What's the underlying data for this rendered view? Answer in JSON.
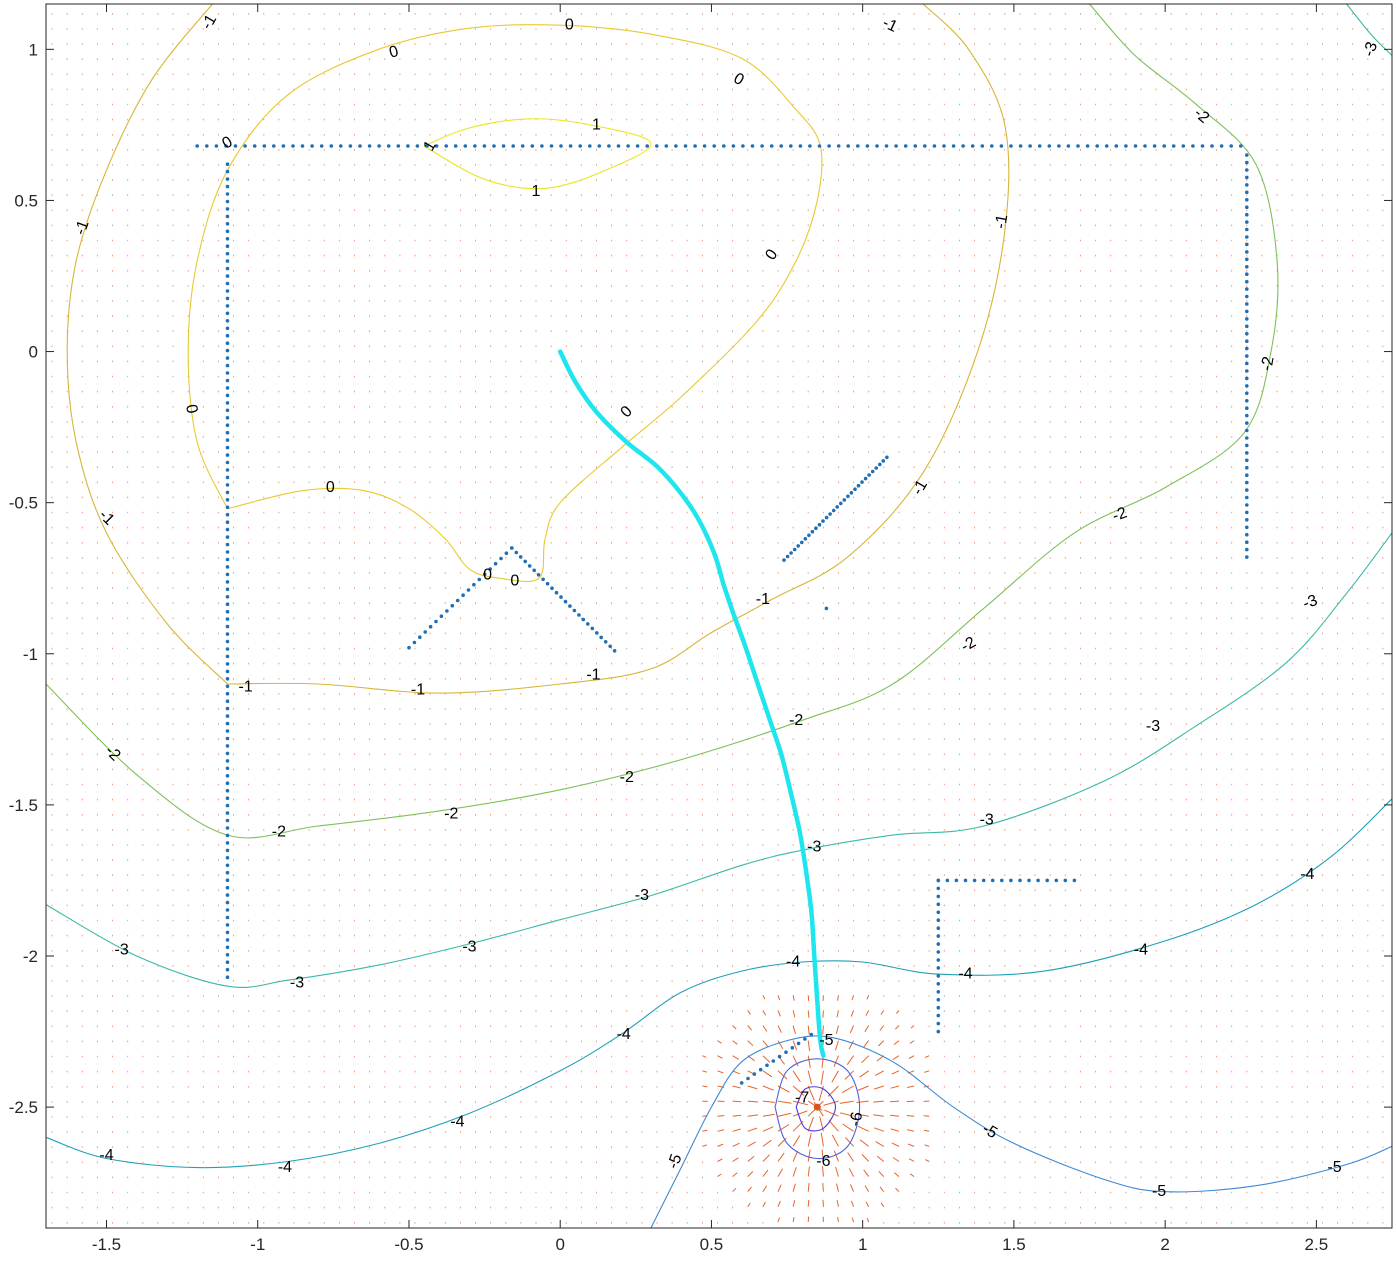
{
  "chart_data": {
    "type": "contour",
    "title": "",
    "xlabel": "",
    "ylabel": "",
    "xlim": [
      -1.7,
      2.75
    ],
    "ylim": [
      -2.9,
      1.15
    ],
    "grid": false,
    "legend": "none",
    "x_ticks": [
      "-1.5",
      "-1",
      "-0.5",
      "0",
      "0.5",
      "1",
      "1.5",
      "2",
      "2.5"
    ],
    "x_tick_values": [
      -1.5,
      -1,
      -0.5,
      0,
      0.5,
      1,
      1.5,
      2,
      2.5
    ],
    "y_ticks": [
      "1",
      "0.5",
      "0",
      "-0.5",
      "-1",
      "-1.5",
      "-2",
      "-2.5"
    ],
    "y_tick_values": [
      1,
      0.5,
      0,
      -0.5,
      -1,
      -1.5,
      -2,
      -2.5
    ],
    "goal": [
      0.85,
      -2.5
    ],
    "contours": [
      {
        "level": 1,
        "color": "#e8e625",
        "points": [
          [
            -0.45,
            0.68
          ],
          [
            -0.3,
            0.74
          ],
          [
            -0.1,
            0.77
          ],
          [
            0.1,
            0.75
          ],
          [
            0.3,
            0.69
          ],
          [
            0.15,
            0.6
          ],
          [
            -0.05,
            0.54
          ],
          [
            -0.25,
            0.57
          ],
          [
            -0.45,
            0.68
          ]
        ]
      },
      {
        "level": 0,
        "color": "#e7c931",
        "points": [
          [
            -1.1,
            -0.52
          ],
          [
            -1.2,
            -0.3
          ],
          [
            -1.23,
            0
          ],
          [
            -1.2,
            0.3
          ],
          [
            -1.1,
            0.6
          ],
          [
            -0.9,
            0.85
          ],
          [
            -0.6,
            1
          ],
          [
            -0.3,
            1.07
          ],
          [
            0,
            1.08
          ],
          [
            0.3,
            1.05
          ],
          [
            0.6,
            0.97
          ],
          [
            0.78,
            0.8
          ],
          [
            0.86,
            0.68
          ],
          [
            0.85,
            0.5
          ],
          [
            0.78,
            0.3
          ],
          [
            0.65,
            0.1
          ],
          [
            0.4,
            -0.15
          ],
          [
            0.2,
            -0.32
          ],
          [
            0,
            -0.5
          ],
          [
            -0.05,
            -0.62
          ],
          [
            -0.07,
            -0.75
          ],
          [
            -0.2,
            -0.75
          ],
          [
            -0.3,
            -0.72
          ],
          [
            -0.38,
            -0.62
          ],
          [
            -0.5,
            -0.52
          ],
          [
            -0.65,
            -0.46
          ],
          [
            -0.85,
            -0.46
          ],
          [
            -1.1,
            -0.52
          ]
        ]
      },
      {
        "level": -1,
        "color": "#d6b538",
        "points": [
          [
            -1.1,
            -1.1
          ],
          [
            -1.3,
            -0.9
          ],
          [
            -1.5,
            -0.6
          ],
          [
            -1.6,
            -0.3
          ],
          [
            -1.63,
            0
          ],
          [
            -1.6,
            0.3
          ],
          [
            -1.5,
            0.6
          ],
          [
            -1.35,
            0.9
          ],
          [
            -1.15,
            1.15
          ]
        ]
      },
      {
        "level": -1,
        "color": "#d6b538",
        "points": [
          [
            -1.1,
            -1.1
          ],
          [
            -0.8,
            -1.1
          ],
          [
            -0.4,
            -1.13
          ],
          [
            0,
            -1.1
          ],
          [
            0.3,
            -1.05
          ],
          [
            0.5,
            -0.93
          ],
          [
            0.7,
            -0.82
          ],
          [
            0.95,
            -0.68
          ],
          [
            1.2,
            -0.4
          ],
          [
            1.38,
            0
          ],
          [
            1.47,
            0.4
          ],
          [
            1.47,
            0.75
          ],
          [
            1.35,
            1
          ],
          [
            1.2,
            1.15
          ]
        ]
      },
      {
        "level": -2,
        "color": "#7dc05a",
        "points": [
          [
            -1.7,
            -1.1
          ],
          [
            -1.4,
            -1.4
          ],
          [
            -1.1,
            -1.6
          ],
          [
            -0.8,
            -1.57
          ],
          [
            -0.4,
            -1.52
          ],
          [
            0,
            -1.45
          ],
          [
            0.4,
            -1.35
          ],
          [
            0.8,
            -1.22
          ],
          [
            1.1,
            -1.1
          ],
          [
            1.4,
            -0.85
          ],
          [
            1.7,
            -0.6
          ],
          [
            2.0,
            -0.45
          ],
          [
            2.26,
            -0.27
          ],
          [
            2.35,
            0
          ],
          [
            2.37,
            0.3
          ],
          [
            2.3,
            0.62
          ],
          [
            2.1,
            0.82
          ],
          [
            1.9,
            0.98
          ],
          [
            1.75,
            1.15
          ]
        ]
      },
      {
        "level": -3,
        "color": "#3bb8a8",
        "points": [
          [
            -1.7,
            -1.83
          ],
          [
            -1.4,
            -2.0
          ],
          [
            -1.1,
            -2.1
          ],
          [
            -0.9,
            -2.08
          ],
          [
            -0.6,
            -2.03
          ],
          [
            -0.3,
            -1.96
          ],
          [
            0,
            -1.88
          ],
          [
            0.3,
            -1.8
          ],
          [
            0.6,
            -1.7
          ],
          [
            0.8,
            -1.65
          ],
          [
            1.1,
            -1.6
          ],
          [
            1.4,
            -1.57
          ],
          [
            1.8,
            -1.42
          ],
          [
            2.1,
            -1.24
          ],
          [
            2.4,
            -1.03
          ],
          [
            2.6,
            -0.8
          ],
          [
            2.75,
            -0.6
          ]
        ]
      },
      {
        "level": -4,
        "color": "#20a0b7",
        "points": [
          [
            -1.7,
            -2.6
          ],
          [
            -1.5,
            -2.67
          ],
          [
            -1.2,
            -2.7
          ],
          [
            -0.9,
            -2.68
          ],
          [
            -0.6,
            -2.62
          ],
          [
            -0.3,
            -2.52
          ],
          [
            0,
            -2.38
          ],
          [
            0.2,
            -2.26
          ],
          [
            0.4,
            -2.12
          ],
          [
            0.6,
            -2.05
          ],
          [
            0.8,
            -2.02
          ],
          [
            1.0,
            -2.02
          ],
          [
            1.25,
            -2.06
          ],
          [
            1.6,
            -2.05
          ],
          [
            2.0,
            -1.95
          ],
          [
            2.3,
            -1.83
          ],
          [
            2.55,
            -1.67
          ],
          [
            2.75,
            -1.48
          ]
        ]
      },
      {
        "level": -5,
        "color": "#3d89d4",
        "points": [
          [
            0.3,
            -2.9
          ],
          [
            0.4,
            -2.7
          ],
          [
            0.5,
            -2.5
          ],
          [
            0.6,
            -2.35
          ],
          [
            0.75,
            -2.28
          ],
          [
            0.9,
            -2.27
          ],
          [
            1.1,
            -2.35
          ],
          [
            1.3,
            -2.5
          ],
          [
            1.5,
            -2.62
          ],
          [
            1.8,
            -2.74
          ],
          [
            2.0,
            -2.78
          ],
          [
            2.3,
            -2.76
          ],
          [
            2.6,
            -2.69
          ],
          [
            2.75,
            -2.63
          ]
        ]
      },
      {
        "level": -6,
        "color": "#4a62dc",
        "points": [
          [
            0.71,
            -2.5
          ],
          [
            0.75,
            -2.38
          ],
          [
            0.85,
            -2.34
          ],
          [
            0.95,
            -2.38
          ],
          [
            0.99,
            -2.5
          ],
          [
            0.95,
            -2.63
          ],
          [
            0.85,
            -2.67
          ],
          [
            0.75,
            -2.62
          ],
          [
            0.71,
            -2.5
          ]
        ]
      },
      {
        "level": -7,
        "color": "#4f39d6",
        "points": [
          [
            0.78,
            -2.5
          ],
          [
            0.81,
            -2.44
          ],
          [
            0.87,
            -2.44
          ],
          [
            0.91,
            -2.5
          ],
          [
            0.87,
            -2.57
          ],
          [
            0.81,
            -2.57
          ],
          [
            0.78,
            -2.5
          ]
        ]
      },
      {
        "level": -3,
        "color": "#3bb8a8",
        "points": [
          [
            2.6,
            1.15
          ],
          [
            2.68,
            1.05
          ],
          [
            2.75,
            0.98
          ]
        ]
      }
    ],
    "contour_labels": [
      {
        "text": "0",
        "x": 0.03,
        "y": 1.08,
        "angle": 0
      },
      {
        "text": "0",
        "x": -0.55,
        "y": 0.99,
        "angle": -15
      },
      {
        "text": "0",
        "x": 0.59,
        "y": 0.9,
        "angle": 30
      },
      {
        "text": "0",
        "x": -1.1,
        "y": 0.69,
        "angle": -30
      },
      {
        "text": "0",
        "x": 0.7,
        "y": 0.32,
        "angle": -55
      },
      {
        "text": "0",
        "x": 0.22,
        "y": -0.2,
        "angle": -45
      },
      {
        "text": "0",
        "x": -1.22,
        "y": -0.19,
        "angle": 80
      },
      {
        "text": "0",
        "x": -0.76,
        "y": -0.45,
        "angle": 0
      },
      {
        "text": "0",
        "x": -0.24,
        "y": -0.74,
        "angle": 0
      },
      {
        "text": "0",
        "x": -0.15,
        "y": -0.76,
        "angle": 0
      },
      {
        "text": "1",
        "x": 0.12,
        "y": 0.75,
        "angle": 0
      },
      {
        "text": "1",
        "x": -0.08,
        "y": 0.53,
        "angle": 0
      },
      {
        "text": "1",
        "x": -0.43,
        "y": 0.68,
        "angle": -60
      },
      {
        "text": "-1",
        "x": -1.16,
        "y": 1.09,
        "angle": -60
      },
      {
        "text": "-1",
        "x": 1.09,
        "y": 1.08,
        "angle": 25
      },
      {
        "text": "-1",
        "x": 1.46,
        "y": 0.43,
        "angle": -80
      },
      {
        "text": "-1",
        "x": -1.58,
        "y": 0.41,
        "angle": -70
      },
      {
        "text": "-1",
        "x": -1.5,
        "y": -0.55,
        "angle": 45
      },
      {
        "text": "-1",
        "x": 1.19,
        "y": -0.45,
        "angle": -60
      },
      {
        "text": "-1",
        "x": 0.67,
        "y": -0.82,
        "angle": 0
      },
      {
        "text": "-1",
        "x": 0.11,
        "y": -1.07,
        "angle": 0
      },
      {
        "text": "-1",
        "x": -0.47,
        "y": -1.12,
        "angle": 0
      },
      {
        "text": "-1",
        "x": -1.04,
        "y": -1.11,
        "angle": 0
      },
      {
        "text": "-2",
        "x": 2.12,
        "y": 0.78,
        "angle": 40
      },
      {
        "text": "-2",
        "x": 2.34,
        "y": -0.04,
        "angle": -80
      },
      {
        "text": "-2",
        "x": 1.85,
        "y": -0.54,
        "angle": -20
      },
      {
        "text": "-2",
        "x": 1.35,
        "y": -0.97,
        "angle": -30
      },
      {
        "text": "-2",
        "x": 0.78,
        "y": -1.22,
        "angle": 0
      },
      {
        "text": "-2",
        "x": 0.22,
        "y": -1.41,
        "angle": 0
      },
      {
        "text": "-2",
        "x": -0.36,
        "y": -1.53,
        "angle": 0
      },
      {
        "text": "-2",
        "x": -0.93,
        "y": -1.59,
        "angle": 0
      },
      {
        "text": "-2",
        "x": -1.48,
        "y": -1.33,
        "angle": 45
      },
      {
        "text": "-3",
        "x": 2.68,
        "y": 1.0,
        "angle": -70
      },
      {
        "text": "-3",
        "x": 2.48,
        "y": -0.83,
        "angle": -20
      },
      {
        "text": "-3",
        "x": 1.96,
        "y": -1.24,
        "angle": 0
      },
      {
        "text": "-3",
        "x": 1.41,
        "y": -1.55,
        "angle": 0
      },
      {
        "text": "-3",
        "x": 0.84,
        "y": -1.64,
        "angle": 0
      },
      {
        "text": "-3",
        "x": 0.27,
        "y": -1.8,
        "angle": 0
      },
      {
        "text": "-3",
        "x": -0.3,
        "y": -1.97,
        "angle": 0
      },
      {
        "text": "-3",
        "x": -0.87,
        "y": -2.09,
        "angle": 0
      },
      {
        "text": "-3",
        "x": -1.45,
        "y": -1.98,
        "angle": 0
      },
      {
        "text": "-4",
        "x": 2.47,
        "y": -1.73,
        "angle": 0
      },
      {
        "text": "-4",
        "x": 1.92,
        "y": -1.98,
        "angle": 0
      },
      {
        "text": "-4",
        "x": 1.34,
        "y": -2.06,
        "angle": 0
      },
      {
        "text": "-4",
        "x": 0.77,
        "y": -2.02,
        "angle": 0
      },
      {
        "text": "-4",
        "x": 0.21,
        "y": -2.26,
        "angle": 0
      },
      {
        "text": "-4",
        "x": -0.34,
        "y": -2.55,
        "angle": 0
      },
      {
        "text": "-4",
        "x": -0.91,
        "y": -2.7,
        "angle": 0
      },
      {
        "text": "-4",
        "x": -1.5,
        "y": -2.66,
        "angle": 0
      },
      {
        "text": "-5",
        "x": 0.88,
        "y": -2.28,
        "angle": 0
      },
      {
        "text": "-5",
        "x": 0.38,
        "y": -2.68,
        "angle": -70
      },
      {
        "text": "-5",
        "x": 1.42,
        "y": -2.58,
        "angle": 30
      },
      {
        "text": "-5",
        "x": 1.98,
        "y": -2.78,
        "angle": 0
      },
      {
        "text": "-5",
        "x": 2.56,
        "y": -2.7,
        "angle": 0
      },
      {
        "text": "-6",
        "x": 0.98,
        "y": -2.54,
        "angle": -80
      },
      {
        "text": "-6",
        "x": 0.87,
        "y": -2.68,
        "angle": 0
      },
      {
        "text": "-7",
        "x": 0.8,
        "y": -2.47,
        "angle": 0
      }
    ],
    "obstacle_segments": [
      {
        "from": [
          -1.2,
          0.68
        ],
        "to": [
          2.25,
          0.68
        ],
        "n": 110
      },
      {
        "from": [
          -1.1,
          0.62
        ],
        "to": [
          -1.1,
          -2.07
        ],
        "n": 110
      },
      {
        "from": [
          2.27,
          0.65
        ],
        "to": [
          2.27,
          -0.68
        ],
        "n": 55
      },
      {
        "from": [
          0.74,
          -0.69
        ],
        "to": [
          1.08,
          -0.35
        ],
        "n": 30
      },
      {
        "from": [
          -0.5,
          -0.98
        ],
        "to": [
          -0.16,
          -0.65
        ],
        "n": 20
      },
      {
        "from": [
          -0.16,
          -0.65
        ],
        "to": [
          0.18,
          -0.99
        ],
        "n": 24
      },
      {
        "from": [
          1.25,
          -1.75
        ],
        "to": [
          1.7,
          -1.75
        ],
        "n": 16
      },
      {
        "from": [
          1.25,
          -1.75
        ],
        "to": [
          1.25,
          -2.25
        ],
        "n": 20
      },
      {
        "from": [
          0.6,
          -2.42
        ],
        "to": [
          0.83,
          -2.26
        ],
        "n": 12
      },
      {
        "from": [
          0.88,
          -0.85
        ],
        "to": [
          0.88,
          -0.85
        ],
        "n": 1
      }
    ],
    "path": [
      [
        0,
        0
      ],
      [
        0.05,
        -0.1
      ],
      [
        0.12,
        -0.2
      ],
      [
        0.22,
        -0.3
      ],
      [
        0.32,
        -0.38
      ],
      [
        0.4,
        -0.47
      ],
      [
        0.46,
        -0.56
      ],
      [
        0.51,
        -0.67
      ],
      [
        0.54,
        -0.77
      ],
      [
        0.57,
        -0.86
      ],
      [
        0.61,
        -0.97
      ],
      [
        0.65,
        -1.09
      ],
      [
        0.69,
        -1.21
      ],
      [
        0.73,
        -1.33
      ],
      [
        0.76,
        -1.45
      ],
      [
        0.79,
        -1.58
      ],
      [
        0.81,
        -1.7
      ],
      [
        0.83,
        -1.85
      ],
      [
        0.84,
        -2.0
      ],
      [
        0.85,
        -2.15
      ],
      [
        0.86,
        -2.28
      ],
      [
        0.87,
        -2.33
      ]
    ],
    "colors": {
      "path": "#1fe6ee",
      "obstacle": "#1f6fb5",
      "quiver": "#e8632a",
      "goal": "#d9531e"
    }
  }
}
